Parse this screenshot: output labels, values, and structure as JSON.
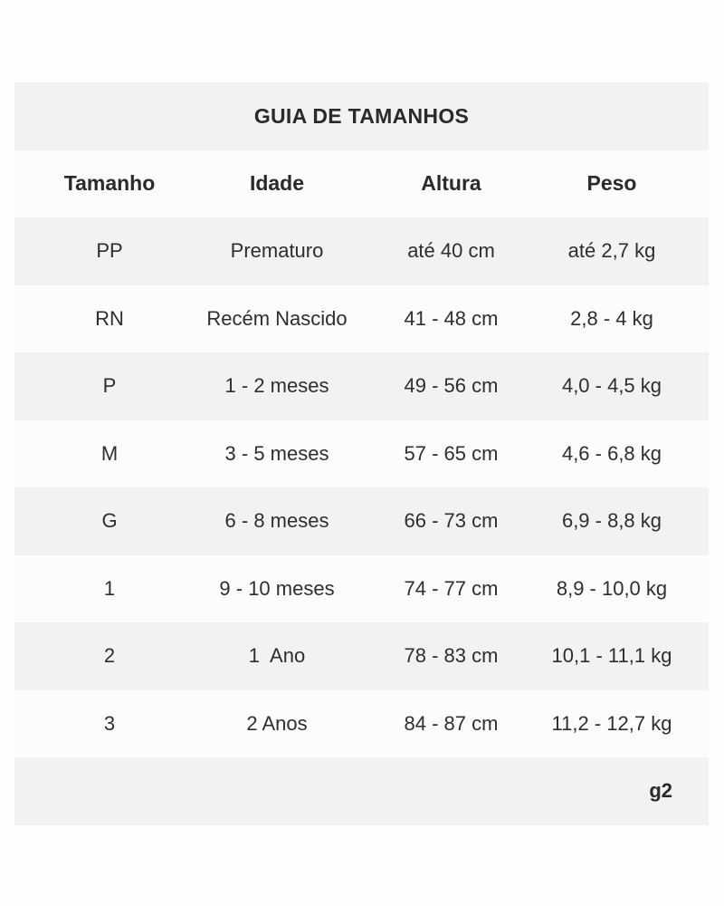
{
  "table": {
    "title": "GUIA DE TAMANHOS",
    "headers": [
      "Tamanho",
      "Idade",
      "Altura",
      "Peso"
    ],
    "rows": [
      [
        "PP",
        "Prematuro",
        "até 40 cm",
        "até 2,7 kg"
      ],
      [
        "RN",
        "Recém Nascido",
        "41 - 48 cm",
        "2,8 - 4 kg"
      ],
      [
        "P",
        "1 - 2 meses",
        "49 - 56 cm",
        "4,0 - 4,5 kg"
      ],
      [
        "M",
        "3 - 5 meses",
        "57 - 65 cm",
        "4,6 - 6,8 kg"
      ],
      [
        "G",
        "6 - 8 meses",
        "66 - 73 cm",
        "6,9 - 8,8 kg"
      ],
      [
        "1",
        "9 - 10 meses",
        "74 - 77 cm",
        "8,9 - 10,0 kg"
      ],
      [
        "2",
        "1  Ano",
        "78 - 83 cm",
        "10,1 - 11,1 kg"
      ],
      [
        "3",
        "2 Anos",
        "84 - 87 cm",
        "11,2 - 12,7 kg"
      ]
    ],
    "footer_mark": "g2"
  },
  "colors": {
    "shaded_row": "#f3f1f1",
    "plain_row": "#fcfcfc",
    "text": "#2e2e2e"
  }
}
